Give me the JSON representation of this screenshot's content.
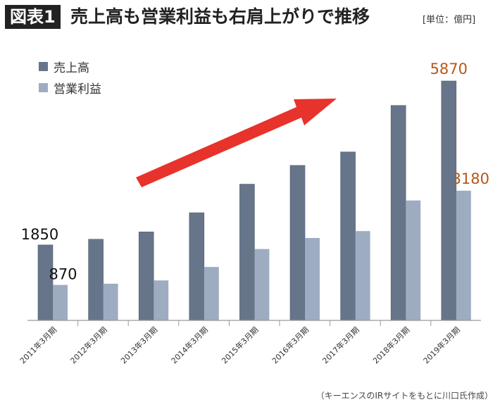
{
  "header": {
    "badge": "図表1",
    "title": "売上高も営業利益も右肩上がりで推移",
    "unit": "[単位：億円]"
  },
  "source": "（キーエンスのIRサイトをもとに川口氏作成）",
  "colors": {
    "sales": "#67758a",
    "profit": "#9eacc1",
    "arrow": "#e8322c",
    "highlight_label": "#b5581a"
  },
  "chart_data": {
    "type": "bar",
    "title": "売上高も営業利益も右肩上がりで推移",
    "categories": [
      "2011年3月期",
      "2012年3月期",
      "2013年3月期",
      "2014年3月期",
      "2015年3月期",
      "2016年3月期",
      "2017年3月期",
      "2018年3月期",
      "2019年3月期"
    ],
    "series": [
      {
        "name": "売上高",
        "values": [
          1850,
          1990,
          2170,
          2640,
          3340,
          3800,
          4130,
          5270,
          5870
        ]
      },
      {
        "name": "営業利益",
        "values": [
          870,
          900,
          980,
          1310,
          1750,
          2020,
          2190,
          2940,
          3180
        ]
      }
    ],
    "data_labels": [
      {
        "series": 0,
        "index": 0,
        "text": "1850"
      },
      {
        "series": 1,
        "index": 0,
        "text": "870"
      },
      {
        "series": 0,
        "index": 8,
        "text": "5870"
      },
      {
        "series": 1,
        "index": 8,
        "text": "3180"
      }
    ],
    "ylim": [
      0,
      5870
    ],
    "grid": false,
    "legend": "top-left",
    "annotation": "red upward arrow"
  }
}
